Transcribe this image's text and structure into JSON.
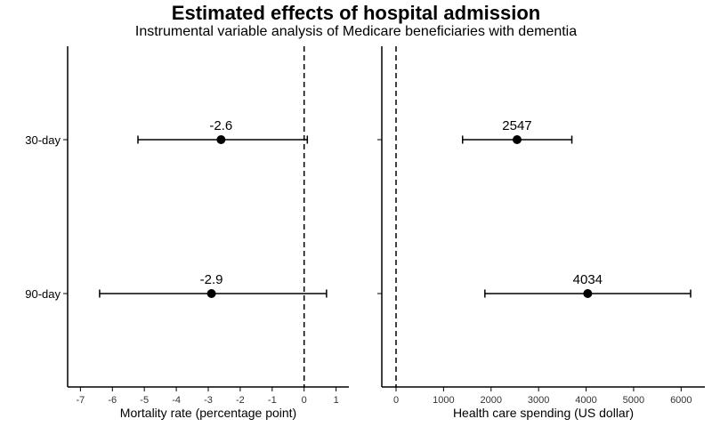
{
  "title": "Estimated effects of hospital admission",
  "subtitle": "Instrumental variable analysis of Medicare beneficiaries with dementia",
  "chart_data": [
    {
      "type": "scatter",
      "subtype": "point-range",
      "xlabel": "Mortality rate (percentage point)",
      "xlim": [
        -7.4,
        1.4
      ],
      "xticks": [
        -7,
        -6,
        -5,
        -4,
        -3,
        -2,
        -1,
        0,
        1
      ],
      "reference_line_x": 0,
      "categories": [
        "30-day",
        "90-day"
      ],
      "points": [
        {
          "category": "30-day",
          "estimate": -2.6,
          "lower": -5.2,
          "upper": 0.1,
          "label": "-2.6"
        },
        {
          "category": "90-day",
          "estimate": -2.9,
          "lower": -6.4,
          "upper": 0.7,
          "label": "-2.9"
        }
      ]
    },
    {
      "type": "scatter",
      "subtype": "point-range",
      "xlabel": "Health care spending (US dollar)",
      "xlim": [
        -300,
        6500
      ],
      "xticks": [
        0,
        1000,
        2000,
        3000,
        4000,
        5000,
        6000
      ],
      "reference_line_x": 0,
      "categories": [
        "30-day",
        "90-day"
      ],
      "points": [
        {
          "category": "30-day",
          "estimate": 2547,
          "lower": 1400,
          "upper": 3700,
          "label": "2547"
        },
        {
          "category": "90-day",
          "estimate": 4034,
          "lower": 1870,
          "upper": 6200,
          "label": "4034"
        }
      ]
    }
  ]
}
